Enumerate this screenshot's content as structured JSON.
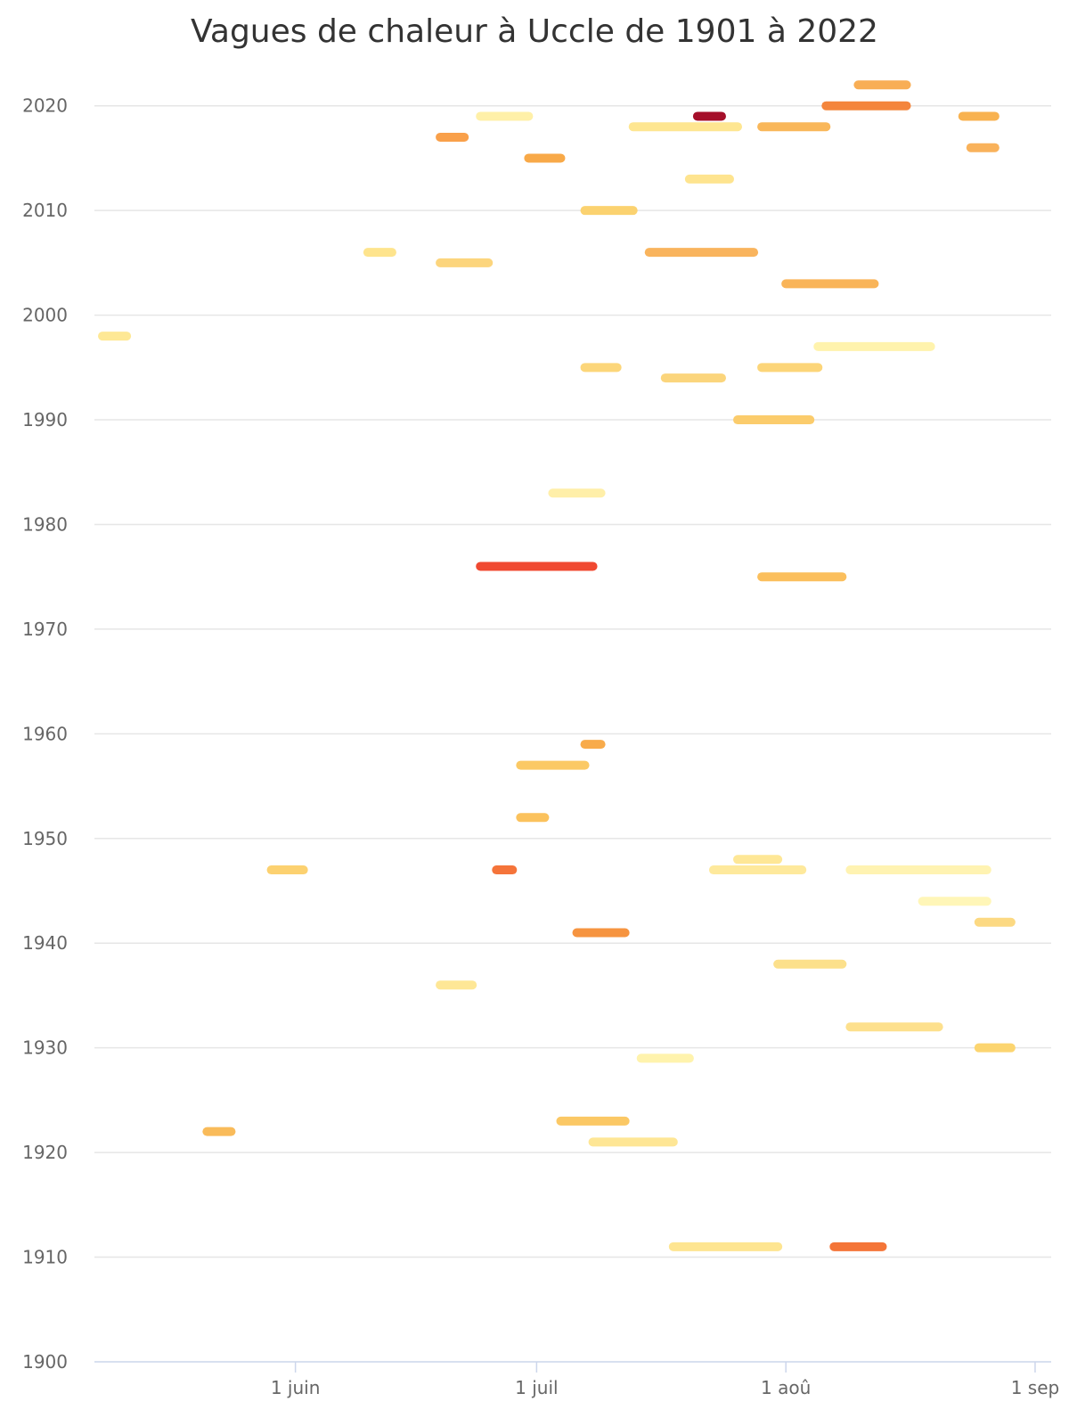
{
  "chart_data": {
    "type": "timeline",
    "title": "Vagues de chaleur à Uccle de 1901 à 2022",
    "y_axis": {
      "ylim": [
        1900,
        2025
      ],
      "ticks": [
        "1900",
        "1910",
        "1920",
        "1930",
        "1940",
        "1950",
        "1960",
        "1970",
        "1980",
        "1990",
        "2000",
        "2010",
        "2020"
      ],
      "grid": true
    },
    "x_axis": {
      "unit": "day of year",
      "xlim": [
        127,
        246
      ],
      "ticks": [
        {
          "label": "1 juin",
          "day": 152
        },
        {
          "label": "1 juil",
          "day": 182
        },
        {
          "label": "1 aoû",
          "day": 213
        },
        {
          "label": "1 sep",
          "day": 244
        }
      ]
    },
    "series": [
      {
        "year": 2022,
        "start": "2022-08-10",
        "end": "2022-08-16",
        "color": "#f8ae55"
      },
      {
        "year": 2020,
        "start": "2020-08-06",
        "end": "2020-08-16",
        "color": "#f4853c"
      },
      {
        "year": 2019,
        "start": "2019-06-24",
        "end": "2019-06-30",
        "color": "#fff0a8"
      },
      {
        "year": 2019,
        "start": "2019-07-21",
        "end": "2019-07-24",
        "color": "#a50f2a"
      },
      {
        "year": 2019,
        "start": "2019-08-23",
        "end": "2019-08-27",
        "color": "#f8b250"
      },
      {
        "year": 2018,
        "start": "2018-07-13",
        "end": "2018-07-26",
        "color": "#fee691"
      },
      {
        "year": 2018,
        "start": "2018-07-29",
        "end": "2018-08-06",
        "color": "#f9b75a"
      },
      {
        "year": 2017,
        "start": "2017-06-19",
        "end": "2017-06-22",
        "color": "#f9a04a"
      },
      {
        "year": 2016,
        "start": "2016-08-24",
        "end": "2016-08-27",
        "color": "#f9b25b"
      },
      {
        "year": 2015,
        "start": "2015-06-30",
        "end": "2015-07-04",
        "color": "#f8a948"
      },
      {
        "year": 2013,
        "start": "2013-07-20",
        "end": "2013-07-25",
        "color": "#fee48f"
      },
      {
        "year": 2010,
        "start": "2010-07-07",
        "end": "2010-07-13",
        "color": "#fbd270"
      },
      {
        "year": 2006,
        "start": "2006-06-10",
        "end": "2006-06-13",
        "color": "#fee48d"
      },
      {
        "year": 2006,
        "start": "2006-07-15",
        "end": "2006-07-28",
        "color": "#f9b45d"
      },
      {
        "year": 2005,
        "start": "2005-06-19",
        "end": "2005-06-25",
        "color": "#fcd57d"
      },
      {
        "year": 2003,
        "start": "2003-08-01",
        "end": "2003-08-12",
        "color": "#f9b458"
      },
      {
        "year": 1998,
        "start": "1998-05-08",
        "end": "1998-05-11",
        "color": "#fee895"
      },
      {
        "year": 1997,
        "start": "1997-08-05",
        "end": "1997-08-19",
        "color": "#fff3ad"
      },
      {
        "year": 1995,
        "start": "1995-07-07",
        "end": "1995-07-11",
        "color": "#fcd67a"
      },
      {
        "year": 1995,
        "start": "1995-07-29",
        "end": "1995-08-05",
        "color": "#fcd579"
      },
      {
        "year": 1994,
        "start": "1994-07-17",
        "end": "1994-07-24",
        "color": "#fbd57c"
      },
      {
        "year": 1990,
        "start": "1990-07-26",
        "end": "1990-08-04",
        "color": "#fbcc6c"
      },
      {
        "year": 1983,
        "start": "1983-07-03",
        "end": "1983-07-09",
        "color": "#ffefa9"
      },
      {
        "year": 1976,
        "start": "1976-06-24",
        "end": "1976-07-08",
        "color": "#f04931"
      },
      {
        "year": 1975,
        "start": "1975-07-29",
        "end": "1975-08-08",
        "color": "#fbbf5d"
      },
      {
        "year": 1959,
        "start": "1959-07-07",
        "end": "1959-07-09",
        "color": "#f8ab4b"
      },
      {
        "year": 1957,
        "start": "1957-06-29",
        "end": "1957-07-07",
        "color": "#fbc965"
      },
      {
        "year": 1952,
        "start": "1952-06-29",
        "end": "1952-07-02",
        "color": "#fbc25d"
      },
      {
        "year": 1948,
        "start": "1948-07-26",
        "end": "1948-07-31",
        "color": "#fee796"
      },
      {
        "year": 1947,
        "start": "1947-05-29",
        "end": "1947-06-02",
        "color": "#fcd170"
      },
      {
        "year": 1947,
        "start": "1947-06-26",
        "end": "1947-06-28",
        "color": "#f5743a"
      },
      {
        "year": 1947,
        "start": "1947-07-23",
        "end": "1947-08-03",
        "color": "#fee99c"
      },
      {
        "year": 1947,
        "start": "1947-08-09",
        "end": "1947-08-26",
        "color": "#fff3b2"
      },
      {
        "year": 1944,
        "start": "1944-08-18",
        "end": "1944-08-26",
        "color": "#fff6b8"
      },
      {
        "year": 1942,
        "start": "1942-08-25",
        "end": "1942-08-29",
        "color": "#fcd982"
      },
      {
        "year": 1941,
        "start": "1941-07-06",
        "end": "1941-07-12",
        "color": "#f69440"
      },
      {
        "year": 1938,
        "start": "1938-07-31",
        "end": "1938-08-08",
        "color": "#fce08b"
      },
      {
        "year": 1936,
        "start": "1936-06-19",
        "end": "1936-06-23",
        "color": "#fee796"
      },
      {
        "year": 1932,
        "start": "1932-08-09",
        "end": "1932-08-20",
        "color": "#fde08d"
      },
      {
        "year": 1930,
        "start": "1930-08-25",
        "end": "1930-08-29",
        "color": "#fcd570"
      },
      {
        "year": 1929,
        "start": "1929-07-14",
        "end": "1929-07-20",
        "color": "#fff3ad"
      },
      {
        "year": 1923,
        "start": "1923-07-04",
        "end": "1923-07-12",
        "color": "#fbc865"
      },
      {
        "year": 1922,
        "start": "1922-05-21",
        "end": "1922-05-24",
        "color": "#f9bb5a"
      },
      {
        "year": 1921,
        "start": "1921-07-08",
        "end": "1921-07-18",
        "color": "#fee695"
      },
      {
        "year": 1911,
        "start": "1911-07-18",
        "end": "1911-07-31",
        "color": "#fee591"
      },
      {
        "year": 1911,
        "start": "1911-08-07",
        "end": "1911-08-13",
        "color": "#f47538"
      }
    ]
  }
}
